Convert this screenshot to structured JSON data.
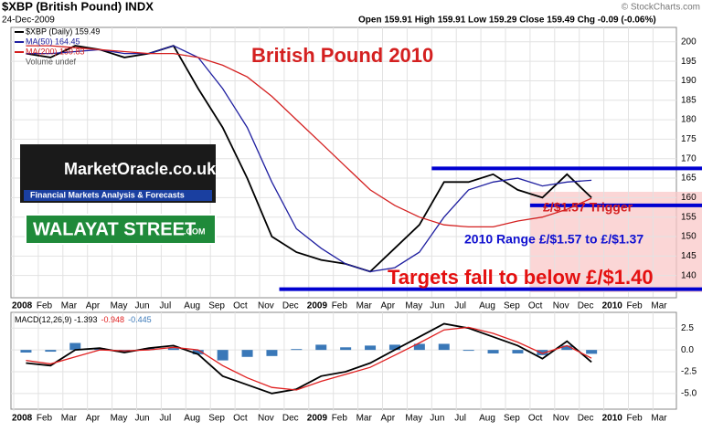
{
  "header": {
    "symbol": "$XBP (British Pound) INDX",
    "copyright": "© StockCharts.com",
    "date": "24-Dec-2009",
    "ohlc": "Open 159.91 High 159.91 Low 159.29 Close 159.49 Chg -0.09 (-0.06%)",
    "volume_note": "Volume undef"
  },
  "annotations": {
    "title": "British Pound 2010",
    "trigger": "£/$1.57 Trigger",
    "range": "2010 Range £/$1.57 to £/$1.37",
    "targets": "Targets fall to below £/$1.40",
    "logo1": "MarketOracle.co.uk",
    "logo1_sub": "Financial Markets Analysis & Forecasts",
    "logo2": "WALAYAT STREET",
    "logo2_sub": ".COM"
  },
  "chart_data": [
    {
      "type": "line",
      "categories": [
        "2008",
        "Feb",
        "Mar",
        "Apr",
        "May",
        "Jun",
        "Jul",
        "Aug",
        "Sep",
        "Oct",
        "Nov",
        "Dec",
        "2009",
        "Feb",
        "Mar",
        "Apr",
        "May",
        "Jun",
        "Jul",
        "Aug",
        "Sep",
        "Oct",
        "Nov",
        "Dec",
        "2010",
        "Feb",
        "Mar"
      ],
      "series": [
        {
          "name": "$XBP (Daily) 159.49",
          "color": "#000000",
          "values": [
            197,
            196,
            199,
            198,
            196,
            197,
            199,
            188,
            178,
            165,
            150,
            146,
            144,
            143,
            141,
            147,
            153,
            164,
            164,
            166,
            162,
            160,
            166,
            160,
            null,
            null,
            null
          ]
        },
        {
          "name": "MA(50) 164.45",
          "color": "#1f1fa0",
          "values": [
            197,
            197,
            197.5,
            198,
            197,
            197,
            199,
            196,
            188,
            178,
            164,
            152,
            147,
            143,
            141,
            142,
            146,
            155,
            162,
            164,
            165,
            163,
            164,
            164.45,
            null,
            null,
            null
          ]
        },
        {
          "name": "MA(200) 159.83",
          "color": "#d42020",
          "values": [
            199,
            199,
            198.5,
            198,
            197.5,
            197,
            197,
            196,
            194,
            191,
            186,
            180,
            174,
            168,
            162,
            158,
            155,
            153,
            152.5,
            152.5,
            154,
            155,
            157,
            159.83,
            null,
            null,
            null
          ]
        }
      ],
      "hlines": [
        167.5,
        158,
        136.5
      ],
      "hline_color": "#0000d0",
      "ylim": [
        135,
        203
      ],
      "yticks": [
        140,
        145,
        150,
        155,
        160,
        165,
        170,
        175,
        180,
        185,
        190,
        195,
        200
      ],
      "grid": true
    },
    {
      "type": "line",
      "categories": [
        "2008",
        "Feb",
        "Mar",
        "Apr",
        "May",
        "Jun",
        "Jul",
        "Aug",
        "Sep",
        "Oct",
        "Nov",
        "Dec",
        "2009",
        "Feb",
        "Mar",
        "Apr",
        "May",
        "Jun",
        "Jul",
        "Aug",
        "Sep",
        "Oct",
        "Nov",
        "Dec",
        "2010",
        "Feb",
        "Mar"
      ],
      "series": [
        {
          "name": "MACD(12,26,9) -1.393",
          "color": "#000000",
          "values": [
            -1.5,
            -1.8,
            0,
            0.2,
            -0.3,
            0.2,
            0.5,
            -0.5,
            -3,
            -4,
            -5,
            -4.5,
            -3,
            -2.5,
            -1.5,
            0,
            1.5,
            3,
            2.5,
            1.5,
            0.5,
            -1,
            1,
            -1.393,
            null,
            null,
            null
          ]
        },
        {
          "name": "-0.948",
          "color": "#e02020",
          "values": [
            -1.2,
            -1.6,
            -0.8,
            0,
            -0.1,
            0,
            0.3,
            0,
            -1.8,
            -3.2,
            -4.3,
            -4.6,
            -3.6,
            -2.8,
            -2,
            -0.6,
            0.8,
            2.3,
            2.6,
            1.9,
            0.9,
            -0.4,
            0.5,
            -0.948,
            null,
            null,
            null
          ]
        }
      ],
      "histogram": {
        "name": "-0.445",
        "color": "#3a78b8",
        "values": [
          -0.3,
          -0.2,
          0.8,
          0.2,
          -0.2,
          0.2,
          0.2,
          -0.5,
          -1.2,
          -0.8,
          -0.7,
          0.1,
          0.6,
          0.3,
          0.5,
          0.6,
          0.7,
          0.7,
          -0.1,
          -0.4,
          -0.4,
          -0.6,
          0.5,
          -0.445,
          null,
          null,
          null
        ]
      },
      "ylim": [
        -6.8,
        4
      ],
      "yticks": [
        {
          "value": 2.5,
          "label": "2.5"
        },
        {
          "value": 0,
          "label": "0.0"
        },
        {
          "value": -2.5,
          "label": "-2.5"
        },
        {
          "value": -5,
          "label": "-5.0"
        }
      ],
      "grid": true
    }
  ]
}
